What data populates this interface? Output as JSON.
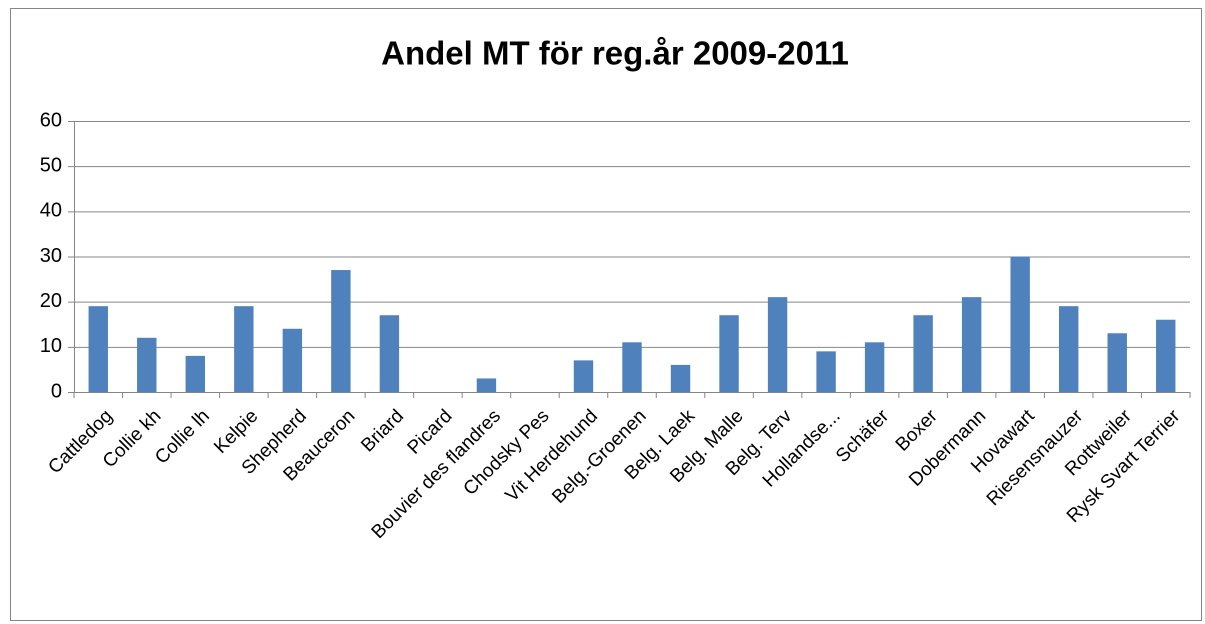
{
  "chart_data": {
    "type": "bar",
    "title": "Andel MT för reg.år 2009-2011",
    "categories": [
      "Cattledog",
      "Collie kh",
      "Collie lh",
      "Kelpie",
      "Shepherd",
      "Beauceron",
      "Briard",
      "Picard",
      "Bouvier des flandres",
      "Chodsky Pes",
      "Vit Herdehund",
      "Belg.-Groenen",
      "Belg. Laek",
      "Belg. Malle",
      "Belg. Terv",
      "Hollandse...",
      "Schäfer",
      "Boxer",
      "Dobermann",
      "Hovawart",
      "Riesensnauzer",
      "Rottweiler",
      "Rysk Svart Terrier"
    ],
    "values": [
      19,
      12,
      8,
      19,
      14,
      27,
      17,
      0,
      3,
      0,
      7,
      11,
      6,
      17,
      21,
      9,
      11,
      17,
      21,
      30,
      19,
      13,
      16
    ],
    "color": "#4f81bd",
    "ylim": [
      0,
      60
    ],
    "yticks": [
      0,
      10,
      20,
      30,
      40,
      50,
      60
    ],
    "grid": true
  }
}
